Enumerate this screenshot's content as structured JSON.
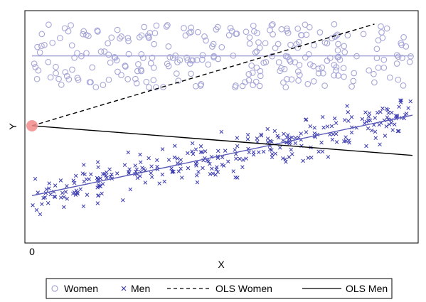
{
  "chart_data": {
    "type": "scatter",
    "title": "",
    "xlabel": "X",
    "ylabel": "Y",
    "x_ticks": [
      "0"
    ],
    "xlim": [
      0,
      100
    ],
    "ylim": [
      0,
      100
    ],
    "grid": false,
    "legend_position": "bottom",
    "series": [
      {
        "name": "Women",
        "marker": "hollow-circle",
        "color": "#a6a6d8",
        "trend": {
          "x": [
            0,
            100
          ],
          "y": [
            81,
            81
          ]
        },
        "n_points": 270,
        "x_range": [
          0,
          100
        ],
        "y_band": [
          66,
          96
        ]
      },
      {
        "name": "Men",
        "marker": "x",
        "color": "#3b3bb0",
        "trend": {
          "x": [
            0,
            100
          ],
          "y": [
            15,
            53
          ]
        },
        "n_points": 310,
        "x_range": [
          0,
          100
        ],
        "y_band": [
          5,
          60
        ]
      },
      {
        "name": "OLS Women",
        "type": "line",
        "style": "dashed",
        "color": "#000000",
        "x": [
          0,
          90
        ],
        "y": [
          48,
          96
        ]
      },
      {
        "name": "OLS Men",
        "type": "line",
        "style": "solid",
        "color": "#000000",
        "x": [
          0,
          100
        ],
        "y": [
          48,
          34
        ]
      }
    ],
    "highlight": {
      "x": 0,
      "y": 48,
      "color": "#f28b8b"
    }
  }
}
